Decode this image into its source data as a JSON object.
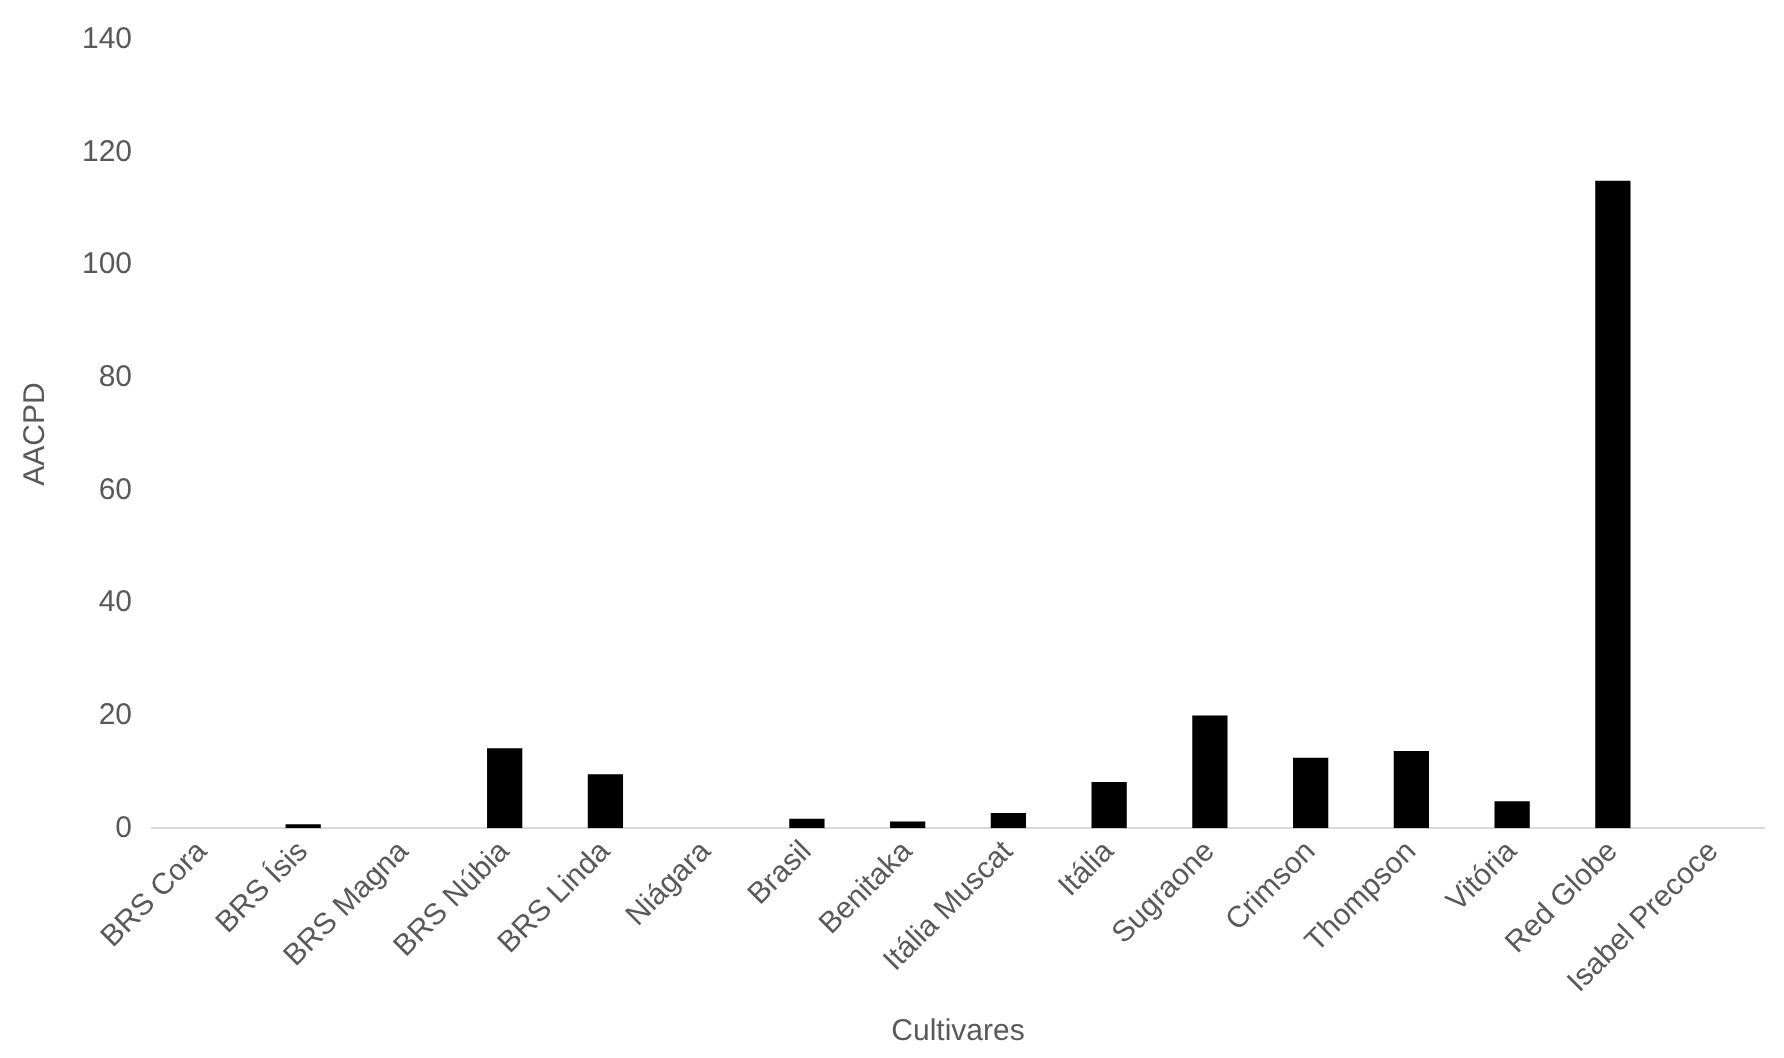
{
  "chart_data": {
    "type": "bar",
    "xlabel": "Cultivares",
    "ylabel": "AACPD",
    "categories": [
      "BRS Cora",
      "BRS Ísis",
      "BRS Magna",
      "BRS Núbia",
      "BRS Linda",
      "Niágara",
      "Brasil",
      "Benitaka",
      "Itália Muscat",
      "Itália",
      "Sugraone",
      "Crimson",
      "Thompson",
      "Vitória",
      "Red Globe",
      "Isabel Precoce"
    ],
    "values": [
      0,
      0.7,
      0,
      14.2,
      9.6,
      0,
      1.7,
      1.2,
      2.7,
      8.2,
      20,
      12.5,
      13.7,
      4.8,
      115,
      0
    ],
    "color": "#000000",
    "ylim": [
      0,
      140
    ],
    "yticks": [
      0,
      20,
      40,
      60,
      80,
      100,
      120,
      140
    ],
    "grid": false,
    "legend": false
  }
}
